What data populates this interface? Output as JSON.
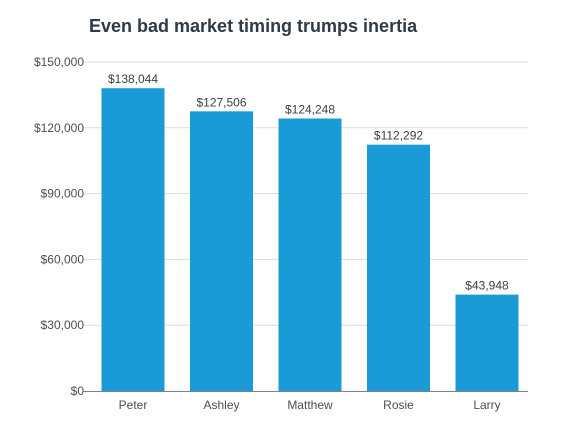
{
  "chart_data": {
    "type": "bar",
    "title": "Even bad market timing trumps inertia",
    "categories": [
      "Peter",
      "Ashley",
      "Matthew",
      "Rosie",
      "Larry"
    ],
    "values": [
      138044,
      127506,
      124248,
      112292,
      43948
    ],
    "data_labels": [
      "$138,044",
      "$127,506",
      "$124,248",
      "$112,292",
      "$43,948"
    ],
    "ylim": [
      0,
      150000
    ],
    "y_ticks": [
      0,
      30000,
      60000,
      90000,
      120000,
      150000
    ],
    "y_tick_labels": [
      "$0",
      "$30,000",
      "$60,000",
      "$90,000",
      "$120,000",
      "$150,000"
    ],
    "xlabel": "",
    "ylabel": "",
    "grid": true,
    "legend": false,
    "bar_color": "#1a9ad6",
    "grid_color": "#d9dde1",
    "axis_color": "#7c8188"
  }
}
